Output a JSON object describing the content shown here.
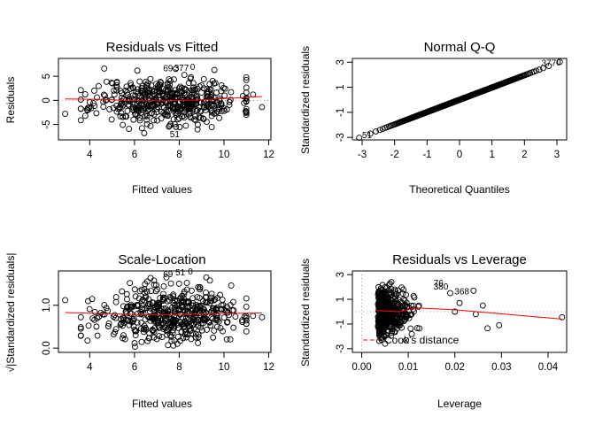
{
  "chart_data": [
    {
      "type": "scatter",
      "title": "Residuals vs Fitted",
      "xlabel": "Fitted values",
      "ylabel": "Residuals",
      "xlim": [
        2.6,
        12.1
      ],
      "ylim": [
        -8.2,
        8.7
      ],
      "xticks": [
        4,
        6,
        8,
        10,
        12
      ],
      "yticks": [
        -5,
        0,
        5
      ],
      "reference_line_y": 0,
      "smooth": [
        [
          2.9,
          0.3
        ],
        [
          4.5,
          0.2
        ],
        [
          6,
          -0.05
        ],
        [
          7.5,
          -0.1
        ],
        [
          9,
          0.1
        ],
        [
          10.5,
          0.5
        ],
        [
          11.7,
          0.8
        ]
      ],
      "labels": [
        {
          "text": "69",
          "x": 7.5,
          "y": 6.6
        },
        {
          "text": "377",
          "x": 8.1,
          "y": 6.7
        },
        {
          "text": "0",
          "x": 8.6,
          "y": 6.9
        },
        {
          "text": "51",
          "x": 7.8,
          "y": -7.1
        }
      ],
      "seed": 11,
      "n_points": 500,
      "x_center": 7.5,
      "x_sd": 1.6,
      "y_sd": 2.4,
      "outliers": [
        [
          2.9,
          -2.8
        ],
        [
          11.7,
          -1.4
        ],
        [
          11.3,
          1.2
        ],
        [
          3.8,
          -3.2
        ],
        [
          4.2,
          2.0
        ]
      ]
    },
    {
      "type": "scatter",
      "title": "Normal Q-Q",
      "xlabel": "Theoretical Quantiles",
      "ylabel": "Standardized residuals",
      "xlim": [
        -3.3,
        3.3
      ],
      "ylim": [
        -3.2,
        3.3
      ],
      "xticks": [
        -3,
        -2,
        -1,
        0,
        1,
        2,
        3
      ],
      "yticks": [
        -3,
        -1,
        1,
        3
      ],
      "reference_line": [
        [
          -3.3,
          -3.2
        ],
        [
          3.3,
          3.3
        ]
      ],
      "labels": [
        {
          "text": "51",
          "x": -2.85,
          "y": -2.85
        },
        {
          "text": "377",
          "x": 2.75,
          "y": 2.9
        },
        {
          "text": "0",
          "x": 3.05,
          "y": 2.95
        }
      ],
      "n_points": 500
    },
    {
      "type": "scatter",
      "title": "Scale-Location",
      "xlabel": "Fitted values",
      "ylabel": "√|Standardized residuals|",
      "xlim": [
        2.6,
        12.1
      ],
      "ylim": [
        -0.1,
        1.8
      ],
      "xticks": [
        4,
        6,
        8,
        10,
        12
      ],
      "yticks": [
        0.0,
        1.0
      ],
      "smooth": [
        [
          2.9,
          0.83
        ],
        [
          5,
          0.8
        ],
        [
          7,
          0.77
        ],
        [
          9,
          0.8
        ],
        [
          11.7,
          0.82
        ]
      ],
      "labels": [
        {
          "text": "69",
          "x": 7.5,
          "y": 1.72
        },
        {
          "text": "51",
          "x": 8.05,
          "y": 1.76
        },
        {
          "text": "0",
          "x": 8.5,
          "y": 1.78
        }
      ],
      "seed": 23,
      "n_points": 500,
      "x_center": 7.5,
      "x_sd": 1.6
    },
    {
      "type": "scatter",
      "title": "Residuals vs Leverage",
      "xlabel": "Leverage",
      "ylabel": "Standardized residuals",
      "xlim": [
        -0.002,
        0.044
      ],
      "ylim": [
        -3.3,
        3.3
      ],
      "xticks": [
        0.0,
        0.01,
        0.02,
        0.03,
        0.04
      ],
      "xtick_labels": [
        "0.00",
        "0.01",
        "0.02",
        "0.03",
        "0.04"
      ],
      "yticks": [
        -3,
        -1,
        1,
        3
      ],
      "smooth": [
        [
          0.003,
          0.1
        ],
        [
          0.008,
          0.0
        ],
        [
          0.012,
          0.3
        ],
        [
          0.02,
          0.15
        ],
        [
          0.043,
          -0.6
        ]
      ],
      "labels": [
        {
          "text": "76",
          "x": 0.0165,
          "y": 2.3
        },
        {
          "text": "380",
          "x": 0.017,
          "y": 2.0
        },
        {
          "text": "368",
          "x": 0.0215,
          "y": 1.6
        }
      ],
      "legend": "Cook's distance",
      "legend_position": "bottom-left",
      "seed": 37,
      "n_points": 500,
      "outliers": [
        [
          0.043,
          -0.45
        ],
        [
          0.0295,
          -1.1
        ],
        [
          0.027,
          -1.35
        ],
        [
          0.026,
          0.5
        ],
        [
          0.0245,
          -0.2
        ],
        [
          0.024,
          1.7
        ],
        [
          0.019,
          1.5
        ],
        [
          0.021,
          0.7
        ],
        [
          0.02,
          0.0
        ]
      ]
    }
  ]
}
